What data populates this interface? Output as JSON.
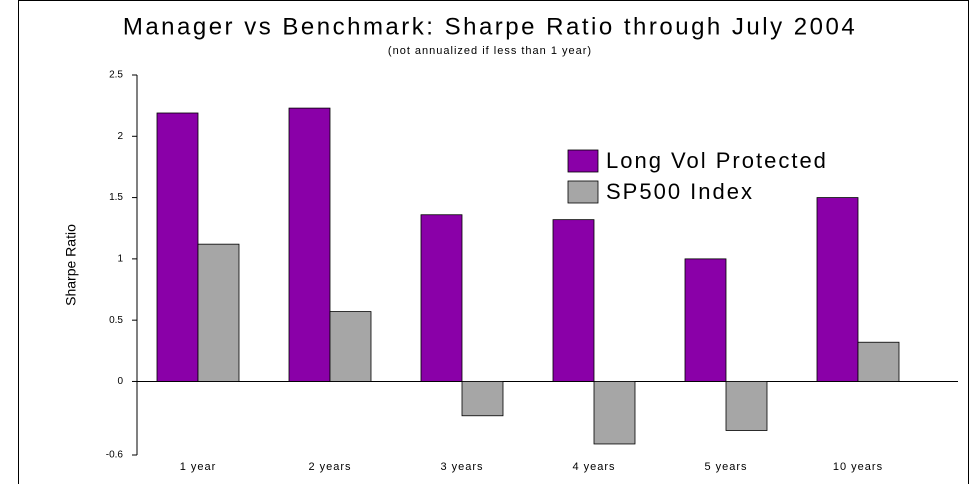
{
  "chart_data": {
    "type": "bar",
    "title": "Manager vs Benchmark: Sharpe Ratio through July 2004",
    "subtitle": "(not annualized if less than 1 year)",
    "y_label": "Sharpe Ratio",
    "categories": [
      "1 year",
      "2 years",
      "3 years",
      "4 years",
      "5 years",
      "10 years"
    ],
    "series": [
      {
        "name": "Long Vol Protected",
        "color": "#8a00a8",
        "values": [
          2.19,
          2.23,
          1.36,
          1.32,
          1.0,
          1.5
        ]
      },
      {
        "name": "SP500 Index",
        "color": "#a6a6a6",
        "values": [
          1.12,
          0.57,
          -0.28,
          -0.51,
          -0.4,
          0.32
        ]
      }
    ],
    "ylim": [
      -0.6,
      2.5
    ],
    "yticks": [
      -0.6,
      0,
      0.5,
      1,
      1.5,
      2,
      2.5
    ],
    "legend": "upper-right"
  }
}
